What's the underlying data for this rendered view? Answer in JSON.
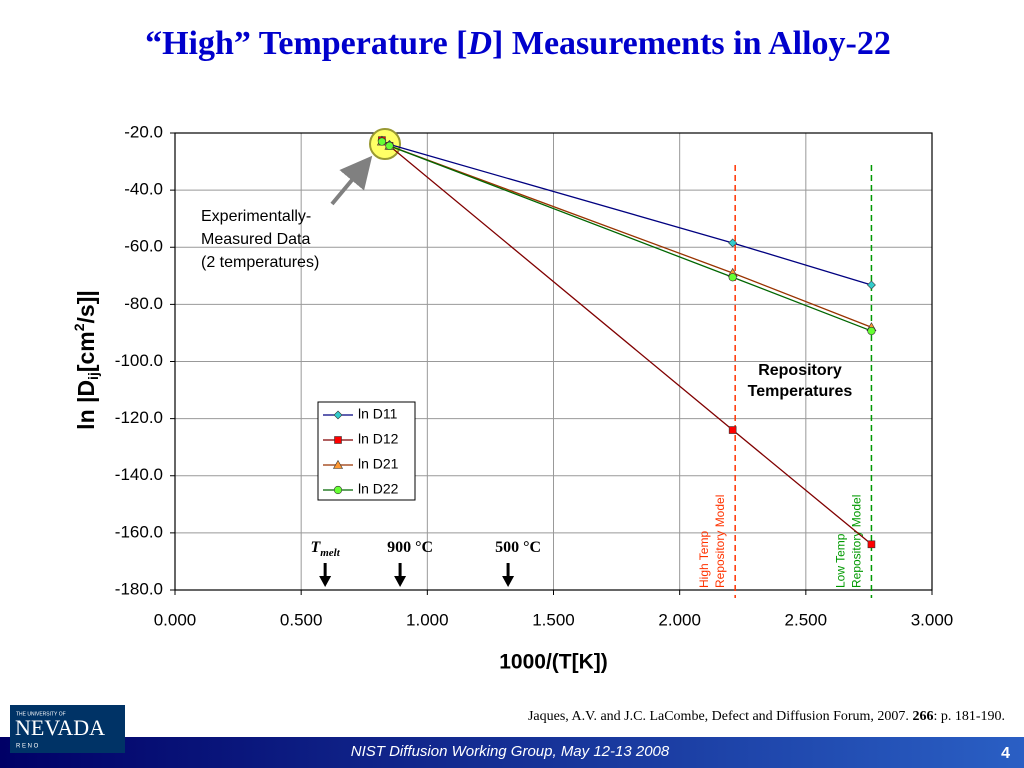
{
  "slide": {
    "title_parts": [
      "“High” Temperature [",
      "D",
      "] Measurements in Alloy-22"
    ],
    "citation_parts": [
      "Jaques, A.V. and J.C. LaCombe, Defect and Diffusion Forum, 2007. ",
      "266",
      ": p. 181-190."
    ],
    "footer": "NIST Diffusion Working Group, May 12-13 2008",
    "page_number": "4",
    "logo": {
      "top": "THE UNIVERSITY OF",
      "name": "NEVADA",
      "bottom": "R E N O"
    }
  },
  "chart_data": {
    "type": "line",
    "xlabel": "1000/(T[K])",
    "ylabel_parts": [
      "ln |D",
      "ij",
      "[cm",
      "2",
      "/s]|"
    ],
    "x": [
      0.82,
      0.85,
      2.21,
      2.76
    ],
    "series": [
      {
        "name": "ln D11",
        "color": "#000080",
        "marker_color": "#33cccc",
        "marker": "diamond",
        "values": [
          -22.5,
          -24,
          -58.5,
          -73.2
        ]
      },
      {
        "name": "ln D12",
        "color": "#800000",
        "marker_color": "#ff0000",
        "marker": "square",
        "values": [
          -22.5,
          -24.5,
          -124,
          -164
        ]
      },
      {
        "name": "ln D21",
        "color": "#993300",
        "marker_color": "#ff9933",
        "marker": "triangle",
        "values": [
          -23,
          -24.5,
          -69,
          -88
        ]
      },
      {
        "name": "ln D22",
        "color": "#006600",
        "marker_color": "#66ff33",
        "marker": "circle",
        "values": [
          -23,
          -24.5,
          -70.5,
          -89.3
        ]
      }
    ],
    "xlim": [
      0,
      3
    ],
    "ylim": [
      -180,
      -20
    ],
    "xticks": [
      {
        "value": 0,
        "label": "0.000"
      },
      {
        "value": 0.5,
        "label": "0.500"
      },
      {
        "value": 1,
        "label": "1.000"
      },
      {
        "value": 1.5,
        "label": "1.500"
      },
      {
        "value": 2,
        "label": "2.000"
      },
      {
        "value": 2.5,
        "label": "2.500"
      },
      {
        "value": 3,
        "label": "3.000"
      }
    ],
    "yticks": [
      {
        "value": -20,
        "label": "-20.0"
      },
      {
        "value": -40,
        "label": "-40.0"
      },
      {
        "value": -60,
        "label": "-60.0"
      },
      {
        "value": -80,
        "label": "-80.0"
      },
      {
        "value": -100,
        "label": "-100.0"
      },
      {
        "value": -120,
        "label": "-120.0"
      },
      {
        "value": -140,
        "label": "-140.0"
      },
      {
        "value": -160,
        "label": "-160.0"
      },
      {
        "value": -180,
        "label": "-180.0"
      }
    ],
    "grid": true,
    "reference_lines": [
      {
        "x": 2.22,
        "color": "#ff3300",
        "label_lines": [
          "High Temp",
          "Repository Model"
        ]
      },
      {
        "x": 2.76,
        "color": "#009900",
        "label_lines": [
          "Low Temp",
          "Repository Model"
        ]
      }
    ],
    "temperature_markers": [
      {
        "x": 0.595,
        "label_parts": [
          "T",
          "melt"
        ]
      },
      {
        "x": 0.892,
        "label_parts": [
          "900 °C"
        ]
      },
      {
        "x": 1.32,
        "label_parts": [
          "500 °C"
        ]
      }
    ],
    "annotations": {
      "measured": [
        "Experimentally-",
        "Measured Data",
        "(2 temperatures)"
      ],
      "repository": [
        "Repository",
        "Temperatures"
      ]
    }
  }
}
